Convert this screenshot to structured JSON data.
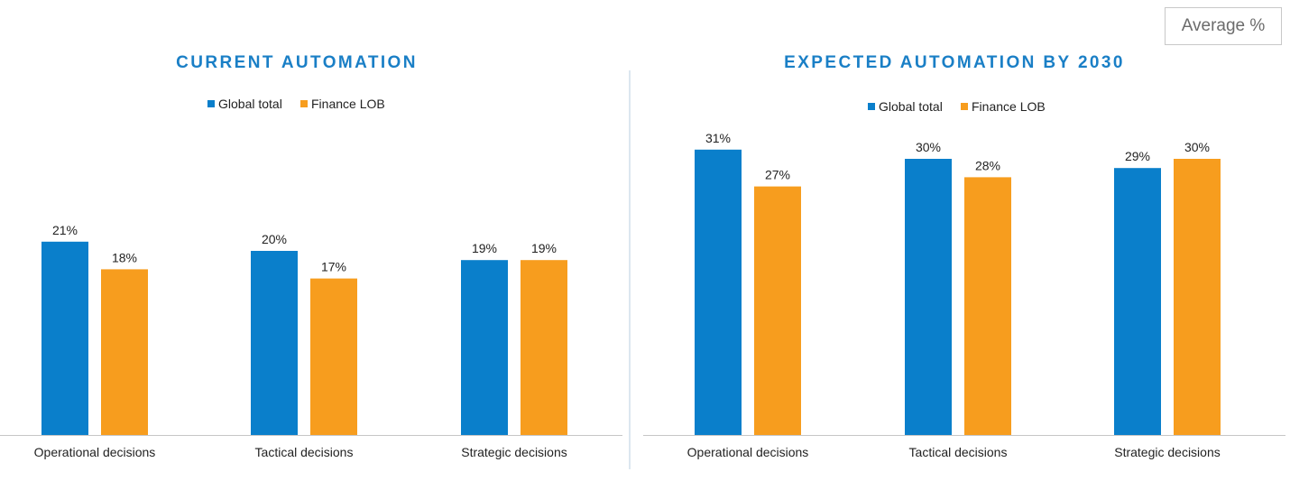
{
  "badge": {
    "label": "Average %"
  },
  "colors": {
    "global": "#0a7fcb",
    "finance": "#f79d1e",
    "title": "#1a7fc6",
    "divider": "#b9cfe0",
    "axis": "#c6c6c6"
  },
  "chart_data": [
    {
      "type": "bar",
      "title": "CURRENT AUTOMATION",
      "categories": [
        "Operational decisions",
        "Tactical decisions",
        "Strategic decisions"
      ],
      "series": [
        {
          "name": "Global total",
          "values": [
            21,
            20,
            19
          ]
        },
        {
          "name": "Finance LOB",
          "values": [
            18,
            17,
            19
          ]
        }
      ],
      "data_labels": [
        [
          "21%",
          "20%",
          "19%"
        ],
        [
          "18%",
          "17%",
          "19%"
        ]
      ],
      "ylim": [
        0,
        36
      ],
      "legend": "top-center",
      "grid": false
    },
    {
      "type": "bar",
      "title": "EXPECTED AUTOMATION BY 2030",
      "categories": [
        "Operational decisions",
        "Tactical decisions",
        "Strategic decisions"
      ],
      "series": [
        {
          "name": "Global total",
          "values": [
            31,
            30,
            29
          ]
        },
        {
          "name": "Finance LOB",
          "values": [
            27,
            28,
            30
          ]
        }
      ],
      "data_labels": [
        [
          "31%",
          "30%",
          "29%"
        ],
        [
          "27%",
          "28%",
          "30%"
        ]
      ],
      "ylim": [
        0,
        36
      ],
      "legend": "top-center",
      "grid": false
    }
  ]
}
